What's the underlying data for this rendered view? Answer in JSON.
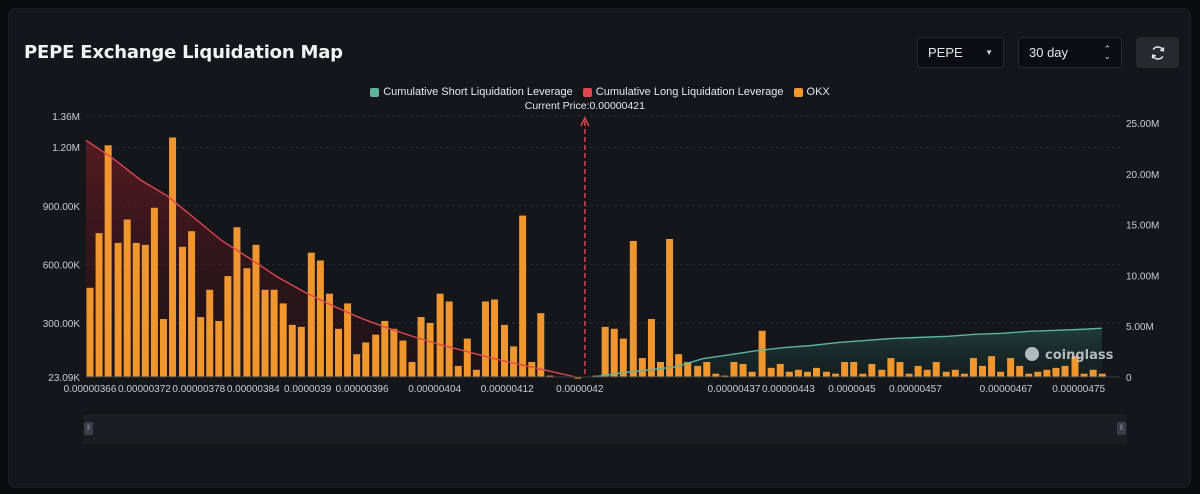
{
  "title": "PEPE Exchange Liquidation Map",
  "controls": {
    "symbol": "PEPE",
    "range": "30 day",
    "refresh_icon": "refresh-icon"
  },
  "legend": [
    {
      "label": "Cumulative Short Liquidation Leverage",
      "color": "#5fb3a1"
    },
    {
      "label": "Cumulative Long Liquidation Leverage",
      "color": "#e0464e"
    },
    {
      "label": "OKX",
      "color": "#f0962e"
    }
  ],
  "current_price_label": "Current Price:0.00000421",
  "watermark": "coinglass",
  "chart_data": {
    "type": "bar",
    "current_price": 4.21e-06,
    "xlim": [
      3.66e-06,
      4.8e-06
    ],
    "x_ticks": [
      "0.00000366",
      "0.00000372",
      "0.00000378",
      "0.00000384",
      "0.0000039",
      "0.00000396",
      "0.00000404",
      "0.00000412",
      "0.0000042",
      "0.00000437",
      "0.00000443",
      "0.0000045",
      "0.00000457",
      "0.00000467",
      "0.00000475"
    ],
    "x_tick_values": [
      3.66e-06,
      3.72e-06,
      3.78e-06,
      3.84e-06,
      3.9e-06,
      3.96e-06,
      4.04e-06,
      4.12e-06,
      4.2e-06,
      4.37e-06,
      4.43e-06,
      4.5e-06,
      4.57e-06,
      4.67e-06,
      4.75e-06
    ],
    "left_axis": {
      "ticks": [
        "1.36M",
        "1.20M",
        "900.00K",
        "600.00K",
        "300.00K",
        "23.09K"
      ],
      "tick_values": [
        1360000,
        1200000,
        900000,
        600000,
        300000,
        23090
      ],
      "range": [
        23090,
        1360000
      ]
    },
    "right_axis": {
      "ticks": [
        "25.00M",
        "20.00M",
        "15.00M",
        "10.00M",
        "5.00M",
        "0"
      ],
      "tick_values": [
        25000000,
        20000000,
        15000000,
        10000000,
        5000000,
        0
      ],
      "range": [
        0,
        25000000
      ]
    },
    "bars": [
      {
        "x": 3.66e-06,
        "y": 480000
      },
      {
        "x": 3.67e-06,
        "y": 760000
      },
      {
        "x": 3.68e-06,
        "y": 1210000
      },
      {
        "x": 3.691e-06,
        "y": 710000
      },
      {
        "x": 3.701e-06,
        "y": 830000
      },
      {
        "x": 3.711e-06,
        "y": 710000
      },
      {
        "x": 3.721e-06,
        "y": 700000
      },
      {
        "x": 3.731e-06,
        "y": 890000
      },
      {
        "x": 3.741e-06,
        "y": 320000
      },
      {
        "x": 3.751e-06,
        "y": 1250000
      },
      {
        "x": 3.762e-06,
        "y": 690000
      },
      {
        "x": 3.772e-06,
        "y": 770000
      },
      {
        "x": 3.782e-06,
        "y": 330000
      },
      {
        "x": 3.792e-06,
        "y": 470000
      },
      {
        "x": 3.802e-06,
        "y": 310000
      },
      {
        "x": 3.812e-06,
        "y": 540000
      },
      {
        "x": 3.822e-06,
        "y": 790000
      },
      {
        "x": 3.833e-06,
        "y": 580000
      },
      {
        "x": 3.843e-06,
        "y": 700000
      },
      {
        "x": 3.853e-06,
        "y": 470000
      },
      {
        "x": 3.863e-06,
        "y": 470000
      },
      {
        "x": 3.873e-06,
        "y": 400000
      },
      {
        "x": 3.883e-06,
        "y": 290000
      },
      {
        "x": 3.893e-06,
        "y": 280000
      },
      {
        "x": 3.904e-06,
        "y": 660000
      },
      {
        "x": 3.914e-06,
        "y": 620000
      },
      {
        "x": 3.924e-06,
        "y": 450000
      },
      {
        "x": 3.934e-06,
        "y": 270000
      },
      {
        "x": 3.944e-06,
        "y": 400000
      },
      {
        "x": 3.954e-06,
        "y": 140000
      },
      {
        "x": 3.964e-06,
        "y": 200000
      },
      {
        "x": 3.975e-06,
        "y": 240000
      },
      {
        "x": 3.985e-06,
        "y": 310000
      },
      {
        "x": 3.995e-06,
        "y": 270000
      },
      {
        "x": 4.005e-06,
        "y": 210000
      },
      {
        "x": 4.015e-06,
        "y": 100000
      },
      {
        "x": 4.025e-06,
        "y": 330000
      },
      {
        "x": 4.035e-06,
        "y": 300000
      },
      {
        "x": 4.046e-06,
        "y": 450000
      },
      {
        "x": 4.056e-06,
        "y": 410000
      },
      {
        "x": 4.066e-06,
        "y": 80000
      },
      {
        "x": 4.076e-06,
        "y": 220000
      },
      {
        "x": 4.086e-06,
        "y": 60000
      },
      {
        "x": 4.096e-06,
        "y": 410000
      },
      {
        "x": 4.106e-06,
        "y": 420000
      },
      {
        "x": 4.117e-06,
        "y": 290000
      },
      {
        "x": 4.127e-06,
        "y": 180000
      },
      {
        "x": 4.137e-06,
        "y": 850000
      },
      {
        "x": 4.147e-06,
        "y": 100000
      },
      {
        "x": 4.157e-06,
        "y": 350000
      },
      {
        "x": 4.167e-06,
        "y": 30000
      },
      {
        "x": 4.198e-06,
        "y": 20000
      },
      {
        "x": 4.218e-06,
        "y": 30000
      },
      {
        "x": 4.228e-06,
        "y": 280000
      },
      {
        "x": 4.238e-06,
        "y": 270000
      },
      {
        "x": 4.248e-06,
        "y": 220000
      },
      {
        "x": 4.259e-06,
        "y": 720000
      },
      {
        "x": 4.269e-06,
        "y": 120000
      },
      {
        "x": 4.279e-06,
        "y": 320000
      },
      {
        "x": 4.289e-06,
        "y": 100000
      },
      {
        "x": 4.299e-06,
        "y": 730000
      },
      {
        "x": 4.309e-06,
        "y": 140000
      },
      {
        "x": 4.319e-06,
        "y": 100000
      },
      {
        "x": 4.33e-06,
        "y": 80000
      },
      {
        "x": 4.34e-06,
        "y": 100000
      },
      {
        "x": 4.35e-06,
        "y": 40000
      },
      {
        "x": 4.36e-06,
        "y": 30000
      },
      {
        "x": 4.37e-06,
        "y": 100000
      },
      {
        "x": 4.38e-06,
        "y": 90000
      },
      {
        "x": 4.39e-06,
        "y": 50000
      },
      {
        "x": 4.401e-06,
        "y": 260000
      },
      {
        "x": 4.411e-06,
        "y": 70000
      },
      {
        "x": 4.421e-06,
        "y": 90000
      },
      {
        "x": 4.431e-06,
        "y": 50000
      },
      {
        "x": 4.441e-06,
        "y": 60000
      },
      {
        "x": 4.451e-06,
        "y": 50000
      },
      {
        "x": 4.461e-06,
        "y": 70000
      },
      {
        "x": 4.472e-06,
        "y": 50000
      },
      {
        "x": 4.482e-06,
        "y": 40000
      },
      {
        "x": 4.492e-06,
        "y": 100000
      },
      {
        "x": 4.502e-06,
        "y": 100000
      },
      {
        "x": 4.512e-06,
        "y": 40000
      },
      {
        "x": 4.522e-06,
        "y": 90000
      },
      {
        "x": 4.533e-06,
        "y": 60000
      },
      {
        "x": 4.543e-06,
        "y": 120000
      },
      {
        "x": 4.553e-06,
        "y": 100000
      },
      {
        "x": 4.563e-06,
        "y": 40000
      },
      {
        "x": 4.573e-06,
        "y": 80000
      },
      {
        "x": 4.583e-06,
        "y": 60000
      },
      {
        "x": 4.593e-06,
        "y": 100000
      },
      {
        "x": 4.604e-06,
        "y": 50000
      },
      {
        "x": 4.614e-06,
        "y": 60000
      },
      {
        "x": 4.624e-06,
        "y": 40000
      },
      {
        "x": 4.634e-06,
        "y": 120000
      },
      {
        "x": 4.644e-06,
        "y": 80000
      },
      {
        "x": 4.654e-06,
        "y": 130000
      },
      {
        "x": 4.664e-06,
        "y": 50000
      },
      {
        "x": 4.675e-06,
        "y": 120000
      },
      {
        "x": 4.685e-06,
        "y": 80000
      },
      {
        "x": 4.695e-06,
        "y": 40000
      },
      {
        "x": 4.705e-06,
        "y": 50000
      },
      {
        "x": 4.715e-06,
        "y": 60000
      },
      {
        "x": 4.725e-06,
        "y": 70000
      },
      {
        "x": 4.735e-06,
        "y": 80000
      },
      {
        "x": 4.746e-06,
        "y": 130000
      },
      {
        "x": 4.756e-06,
        "y": 40000
      },
      {
        "x": 4.766e-06,
        "y": 60000
      },
      {
        "x": 4.776e-06,
        "y": 40000
      }
    ],
    "long_cumulative": {
      "x": [
        3.66e-06,
        3.69e-06,
        3.72e-06,
        3.75e-06,
        3.78e-06,
        3.81e-06,
        3.84e-06,
        3.87e-06,
        3.9e-06,
        3.93e-06,
        3.96e-06,
        3.99e-06,
        4.02e-06,
        4.05e-06,
        4.08e-06,
        4.11e-06,
        4.14e-06,
        4.17e-06,
        4.2e-06
      ],
      "y": [
        23300000,
        21500000,
        19400000,
        17800000,
        15600000,
        13400000,
        11700000,
        9900000,
        8400000,
        7100000,
        5900000,
        4900000,
        4000000,
        3200000,
        2500000,
        1800000,
        1200000,
        600000,
        0
      ]
    },
    "short_cumulative": {
      "x": [
        4.22e-06,
        4.25e-06,
        4.28e-06,
        4.31e-06,
        4.34e-06,
        4.37e-06,
        4.4e-06,
        4.43e-06,
        4.46e-06,
        4.49e-06,
        4.52e-06,
        4.55e-06,
        4.58e-06,
        4.61e-06,
        4.64e-06,
        4.67e-06,
        4.7e-06,
        4.73e-06,
        4.76e-06,
        4.78e-06
      ],
      "y": [
        0,
        400000,
        700000,
        1000000,
        1800000,
        2200000,
        2600000,
        2900000,
        3100000,
        3400000,
        3600000,
        3800000,
        3900000,
        4000000,
        4200000,
        4300000,
        4500000,
        4600000,
        4700000,
        4800000
      ]
    },
    "grid": true
  }
}
